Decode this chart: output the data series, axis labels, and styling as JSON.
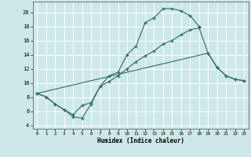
{
  "xlabel": "Humidex (Indice chaleur)",
  "background_color": "#cde8e8",
  "grid_color": "#ffffff",
  "line_color": "#2e6b5e",
  "xlim": [
    -0.5,
    23.5
  ],
  "ylim": [
    3.5,
    21.5
  ],
  "xticks": [
    0,
    1,
    2,
    3,
    4,
    5,
    6,
    7,
    8,
    9,
    10,
    11,
    12,
    13,
    14,
    15,
    16,
    17,
    18,
    19,
    20,
    21,
    22,
    23
  ],
  "yticks": [
    4,
    6,
    8,
    10,
    12,
    14,
    16,
    18,
    20
  ],
  "line1_x": [
    0,
    1,
    2,
    3,
    4,
    5,
    6,
    7,
    8,
    9,
    10,
    11,
    12,
    13,
    14,
    15,
    16,
    17,
    18
  ],
  "line1_y": [
    8.5,
    8.0,
    7.0,
    6.2,
    5.2,
    5.0,
    7.0,
    9.5,
    11.0,
    11.5,
    14.0,
    15.2,
    18.5,
    19.2,
    20.5,
    20.5,
    20.2,
    19.5,
    18.0
  ],
  "line2_x": [
    0,
    1,
    2,
    3,
    4,
    5,
    6,
    7,
    8,
    9,
    10,
    11,
    12,
    13,
    14,
    15,
    16,
    17,
    18,
    19,
    20,
    21,
    22,
    23
  ],
  "line2_y": [
    8.5,
    8.0,
    7.0,
    6.2,
    5.5,
    6.8,
    7.2,
    9.5,
    10.2,
    11.0,
    12.0,
    13.0,
    13.8,
    14.5,
    15.5,
    16.0,
    16.8,
    17.5,
    17.8,
    14.2,
    12.2,
    11.0,
    10.5,
    10.3
  ],
  "line3_x": [
    0,
    19,
    20,
    21,
    22,
    23
  ],
  "line3_y": [
    8.5,
    14.2,
    12.2,
    11.0,
    10.5,
    10.3
  ]
}
